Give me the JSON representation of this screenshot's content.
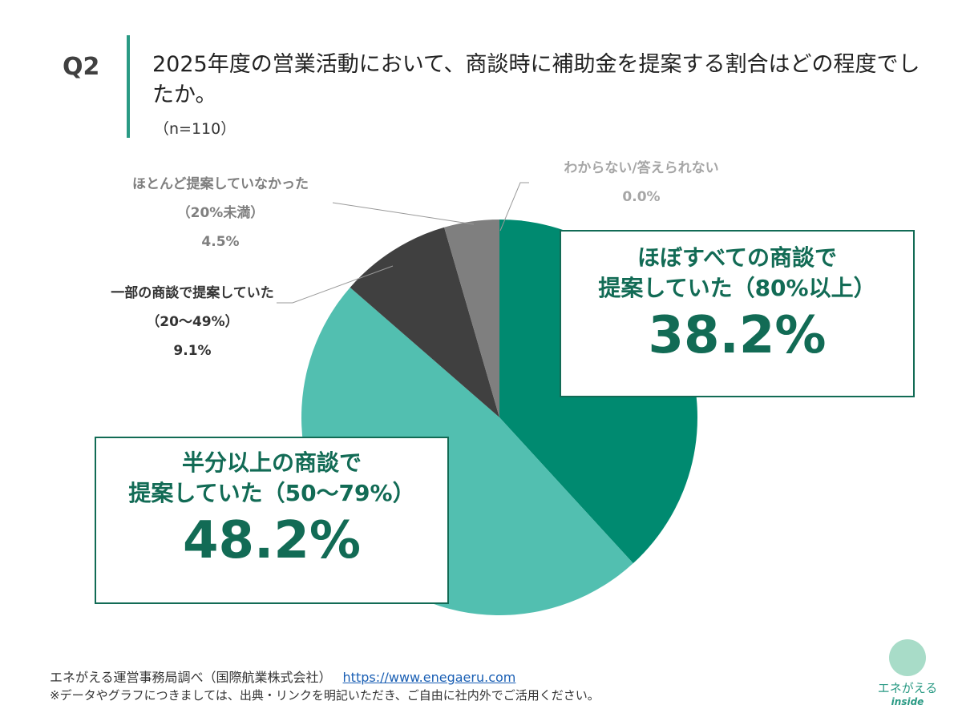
{
  "header": {
    "q": "Q2",
    "title": "2025年度の営業活動において、商談時に補助金を提案する割合はどの程度でしたか。",
    "n": "（n=110）"
  },
  "chart_data": {
    "type": "pie",
    "title": "2025年度の営業活動において、商談時に補助金を提案する割合はどの程度でしたか。",
    "slices": [
      {
        "label": "ほぼすべての商談で提案していた（80%以上）",
        "line1": "ほぼすべての商談で",
        "line2": "提案していた（80%以上）",
        "value": 38.2,
        "value_label": "38.2%",
        "color": "#008a70"
      },
      {
        "label": "半分以上の商談で提案していた（50〜79%）",
        "line1": "半分以上の商談で",
        "line2": "提案していた（50〜79%）",
        "value": 48.2,
        "value_label": "48.2%",
        "color": "#52bfb0"
      },
      {
        "label": "一部の商談で提案していた（20〜49%）",
        "line1": "一部の商談で提案していた",
        "line2": "（20〜49%）",
        "value": 9.1,
        "value_label": "9.1%",
        "color": "#404040"
      },
      {
        "label": "ほとんど提案していなかった（20%未満）",
        "line1": "ほとんど提案していなかった",
        "line2": "（20%未満）",
        "value": 4.5,
        "value_label": "4.5%",
        "color": "#7f7f7f"
      },
      {
        "label": "わからない/答えられない",
        "line1": "わからない/答えられない",
        "value": 0.0,
        "value_label": "0.0%",
        "color": "#bfbfbf"
      }
    ]
  },
  "footer": {
    "source": "エネがえる運営事務局調べ（国際航業株式会社）",
    "link": "https://www.enegaeru.com",
    "note": "※データやグラフにつきましては、出典・リンクを明記いただき、ご自由に社内外でご活用ください。"
  },
  "logo": {
    "name": "エネがえる",
    "sub": "inside"
  }
}
